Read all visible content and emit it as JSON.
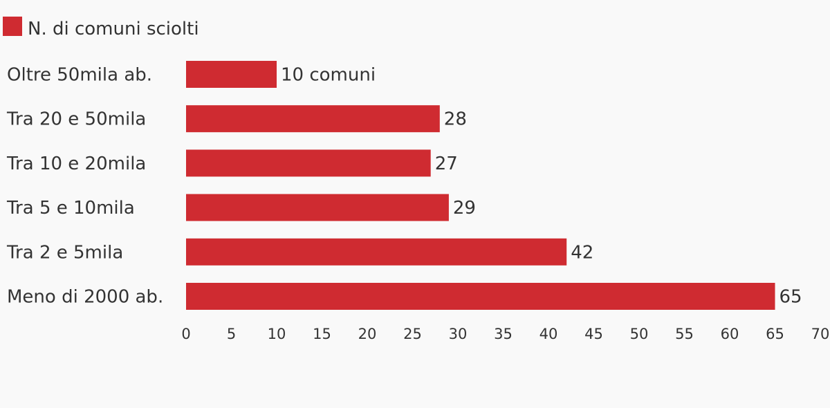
{
  "chart_data": {
    "type": "bar",
    "orientation": "horizontal",
    "title": "",
    "xlabel": "",
    "ylabel": "",
    "categories": [
      "Oltre 50mila ab.",
      "Tra 20 e 50mila",
      "Tra 10 e 20mila",
      "Tra 5 e 10mila",
      "Tra 2 e 5mila",
      "Meno di 2000 ab."
    ],
    "series": [
      {
        "name": "N. di comuni sciolti",
        "values": [
          10,
          28,
          27,
          29,
          42,
          65
        ],
        "color": "#cf2b31"
      }
    ],
    "data_labels": [
      "10 comuni",
      "28",
      "27",
      "29",
      "42",
      "65"
    ],
    "xlim": [
      0,
      70
    ],
    "xticks": [
      0,
      5,
      10,
      15,
      20,
      25,
      30,
      35,
      40,
      45,
      50,
      55,
      60,
      65,
      70
    ],
    "grid": false,
    "legend": "top-left"
  }
}
